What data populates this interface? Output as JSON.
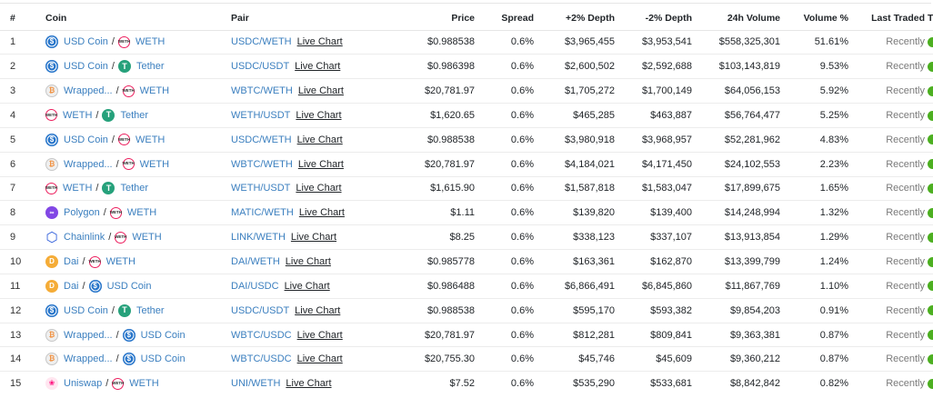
{
  "columns": {
    "num": "#",
    "coin": "Coin",
    "pair": "Pair",
    "price": "Price",
    "spread": "Spread",
    "plus_depth": "+2% Depth",
    "minus_depth": "-2% Depth",
    "volume": "24h Volume",
    "volume_pct": "Volume %",
    "last_traded": "Last Traded",
    "trust": "Trust Score"
  },
  "trust_color": "#4caf20",
  "rows": [
    {
      "num": "1",
      "base": "USD Coin",
      "base_icon": "usdc-icon",
      "quote": "WETH",
      "quote_icon": "weth-icon",
      "pair": "USDC/WETH",
      "live": "Live Chart",
      "price": "$0.988538",
      "spread": "0.6%",
      "plus_depth": "$3,965,455",
      "minus_depth": "$3,953,541",
      "volume": "$558,325,301",
      "volume_pct": "51.61%",
      "last": "Recently"
    },
    {
      "num": "2",
      "base": "USD Coin",
      "base_icon": "usdc-icon",
      "quote": "Tether",
      "quote_icon": "tether-icon",
      "pair": "USDC/USDT",
      "live": "Live Chart",
      "price": "$0.986398",
      "spread": "0.6%",
      "plus_depth": "$2,600,502",
      "minus_depth": "$2,592,688",
      "volume": "$103,143,819",
      "volume_pct": "9.53%",
      "last": "Recently"
    },
    {
      "num": "3",
      "base": "Wrapped...",
      "base_icon": "wbtc-icon",
      "quote": "WETH",
      "quote_icon": "weth-icon",
      "pair": "WBTC/WETH",
      "live": "Live Chart",
      "price": "$20,781.97",
      "spread": "0.6%",
      "plus_depth": "$1,705,272",
      "minus_depth": "$1,700,149",
      "volume": "$64,056,153",
      "volume_pct": "5.92%",
      "last": "Recently"
    },
    {
      "num": "4",
      "base": "WETH",
      "base_icon": "weth-icon",
      "quote": "Tether",
      "quote_icon": "tether-icon",
      "pair": "WETH/USDT",
      "live": "Live Chart",
      "price": "$1,620.65",
      "spread": "0.6%",
      "plus_depth": "$465,285",
      "minus_depth": "$463,887",
      "volume": "$56,764,477",
      "volume_pct": "5.25%",
      "last": "Recently"
    },
    {
      "num": "5",
      "base": "USD Coin",
      "base_icon": "usdc-icon",
      "quote": "WETH",
      "quote_icon": "weth-icon",
      "pair": "USDC/WETH",
      "live": "Live Chart",
      "price": "$0.988538",
      "spread": "0.6%",
      "plus_depth": "$3,980,918",
      "minus_depth": "$3,968,957",
      "volume": "$52,281,962",
      "volume_pct": "4.83%",
      "last": "Recently"
    },
    {
      "num": "6",
      "base": "Wrapped...",
      "base_icon": "wbtc-icon",
      "quote": "WETH",
      "quote_icon": "weth-icon",
      "pair": "WBTC/WETH",
      "live": "Live Chart",
      "price": "$20,781.97",
      "spread": "0.6%",
      "plus_depth": "$4,184,021",
      "minus_depth": "$4,171,450",
      "volume": "$24,102,553",
      "volume_pct": "2.23%",
      "last": "Recently"
    },
    {
      "num": "7",
      "base": "WETH",
      "base_icon": "weth-icon",
      "quote": "Tether",
      "quote_icon": "tether-icon",
      "pair": "WETH/USDT",
      "live": "Live Chart",
      "price": "$1,615.90",
      "spread": "0.6%",
      "plus_depth": "$1,587,818",
      "minus_depth": "$1,583,047",
      "volume": "$17,899,675",
      "volume_pct": "1.65%",
      "last": "Recently"
    },
    {
      "num": "8",
      "base": "Polygon",
      "base_icon": "polygon-icon",
      "quote": "WETH",
      "quote_icon": "weth-icon",
      "pair": "MATIC/WETH",
      "live": "Live Chart",
      "price": "$1.11",
      "spread": "0.6%",
      "plus_depth": "$139,820",
      "minus_depth": "$139,400",
      "volume": "$14,248,994",
      "volume_pct": "1.32%",
      "last": "Recently"
    },
    {
      "num": "9",
      "base": "Chainlink",
      "base_icon": "chainlink-icon",
      "quote": "WETH",
      "quote_icon": "weth-icon",
      "pair": "LINK/WETH",
      "live": "Live Chart",
      "price": "$8.25",
      "spread": "0.6%",
      "plus_depth": "$338,123",
      "minus_depth": "$337,107",
      "volume": "$13,913,854",
      "volume_pct": "1.29%",
      "last": "Recently"
    },
    {
      "num": "10",
      "base": "Dai",
      "base_icon": "dai-icon",
      "quote": "WETH",
      "quote_icon": "weth-icon",
      "pair": "DAI/WETH",
      "live": "Live Chart",
      "price": "$0.985778",
      "spread": "0.6%",
      "plus_depth": "$163,361",
      "minus_depth": "$162,870",
      "volume": "$13,399,799",
      "volume_pct": "1.24%",
      "last": "Recently"
    },
    {
      "num": "11",
      "base": "Dai",
      "base_icon": "dai-icon",
      "quote": "USD Coin",
      "quote_icon": "usdc-icon",
      "pair": "DAI/USDC",
      "live": "Live Chart",
      "price": "$0.986488",
      "spread": "0.6%",
      "plus_depth": "$6,866,491",
      "minus_depth": "$6,845,860",
      "volume": "$11,867,769",
      "volume_pct": "1.10%",
      "last": "Recently"
    },
    {
      "num": "12",
      "base": "USD Coin",
      "base_icon": "usdc-icon",
      "quote": "Tether",
      "quote_icon": "tether-icon",
      "pair": "USDC/USDT",
      "live": "Live Chart",
      "price": "$0.988538",
      "spread": "0.6%",
      "plus_depth": "$595,170",
      "minus_depth": "$593,382",
      "volume": "$9,854,203",
      "volume_pct": "0.91%",
      "last": "Recently"
    },
    {
      "num": "13",
      "base": "Wrapped...",
      "base_icon": "wbtc-icon",
      "quote": "USD Coin",
      "quote_icon": "usdc-icon",
      "pair": "WBTC/USDC",
      "live": "Live Chart",
      "price": "$20,781.97",
      "spread": "0.6%",
      "plus_depth": "$812,281",
      "minus_depth": "$809,841",
      "volume": "$9,363,381",
      "volume_pct": "0.87%",
      "last": "Recently"
    },
    {
      "num": "14",
      "base": "Wrapped...",
      "base_icon": "wbtc-icon",
      "quote": "USD Coin",
      "quote_icon": "usdc-icon",
      "pair": "WBTC/USDC",
      "live": "Live Chart",
      "price": "$20,755.30",
      "spread": "0.6%",
      "plus_depth": "$45,746",
      "minus_depth": "$45,609",
      "volume": "$9,360,212",
      "volume_pct": "0.87%",
      "last": "Recently"
    },
    {
      "num": "15",
      "base": "Uniswap",
      "base_icon": "uniswap-icon",
      "quote": "WETH",
      "quote_icon": "weth-icon",
      "pair": "UNI/WETH",
      "live": "Live Chart",
      "price": "$7.52",
      "spread": "0.6%",
      "plus_depth": "$535,290",
      "minus_depth": "$533,681",
      "volume": "$8,842,842",
      "volume_pct": "0.82%",
      "last": "Recently"
    }
  ]
}
